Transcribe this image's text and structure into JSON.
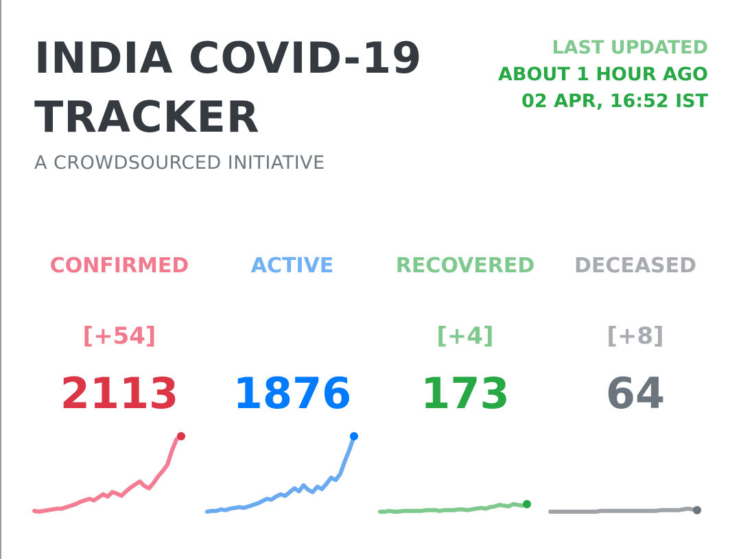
{
  "header": {
    "title_line1": "INDIA COVID-19",
    "title_line2": "TRACKER",
    "subtitle": "A CROWDSOURCED INITIATIVE"
  },
  "last_updated": {
    "label": "LAST UPDATED",
    "relative": "ABOUT 1 HOUR AGO",
    "absolute": "02 APR, 16:52 IST"
  },
  "stats": [
    {
      "label": "CONFIRMED",
      "delta": "[+54]",
      "total": "2113",
      "color": "#dc3545",
      "label_color": "#f27a8e",
      "delta_color": "#f27a8e",
      "line_color": "#f47d93",
      "trend": [
        1,
        0,
        1,
        2,
        3,
        4,
        4,
        6,
        8,
        10,
        13,
        15,
        17,
        15,
        19,
        23,
        20,
        26,
        24,
        21,
        27,
        32,
        36,
        40,
        34,
        31,
        38,
        47,
        54,
        62,
        81,
        96,
        100
      ]
    },
    {
      "label": "ACTIVE",
      "delta": "",
      "total": "1876",
      "color": "#007bff",
      "label_color": "#6fb1f4",
      "delta_color": "#6fb1f4",
      "line_color": "#6aaaf0",
      "trend": [
        0,
        1,
        1,
        3,
        2,
        4,
        5,
        6,
        5,
        7,
        9,
        11,
        14,
        17,
        16,
        20,
        23,
        21,
        26,
        31,
        27,
        35,
        29,
        26,
        33,
        30,
        37,
        45,
        42,
        50,
        67,
        82,
        100
      ]
    },
    {
      "label": "RECOVERED",
      "delta": "[+4]",
      "total": "173",
      "color": "#28a745",
      "label_color": "#7fc98f",
      "delta_color": "#7fc98f",
      "line_color": "#7fc98f",
      "trend": [
        0,
        0,
        1,
        0,
        0,
        1,
        1,
        1,
        1,
        1,
        2,
        2,
        2,
        1,
        2,
        2,
        2,
        3,
        3,
        2,
        3,
        4,
        5,
        4,
        6,
        7,
        9,
        8,
        7,
        10,
        9,
        8,
        10
      ]
    },
    {
      "label": "DECEASED",
      "delta": "[+8]",
      "total": "64",
      "color": "#6c757d",
      "label_color": "#a8abb0",
      "delta_color": "#a8abb0",
      "line_color": "#9fa3a8",
      "trend": [
        0,
        0,
        0,
        0,
        0,
        0,
        0,
        0,
        0,
        0,
        0,
        1,
        1,
        1,
        1,
        1,
        1,
        1,
        1,
        1,
        1,
        1,
        1,
        1,
        2,
        2,
        2,
        2,
        2,
        3,
        4,
        3,
        2
      ]
    }
  ]
}
